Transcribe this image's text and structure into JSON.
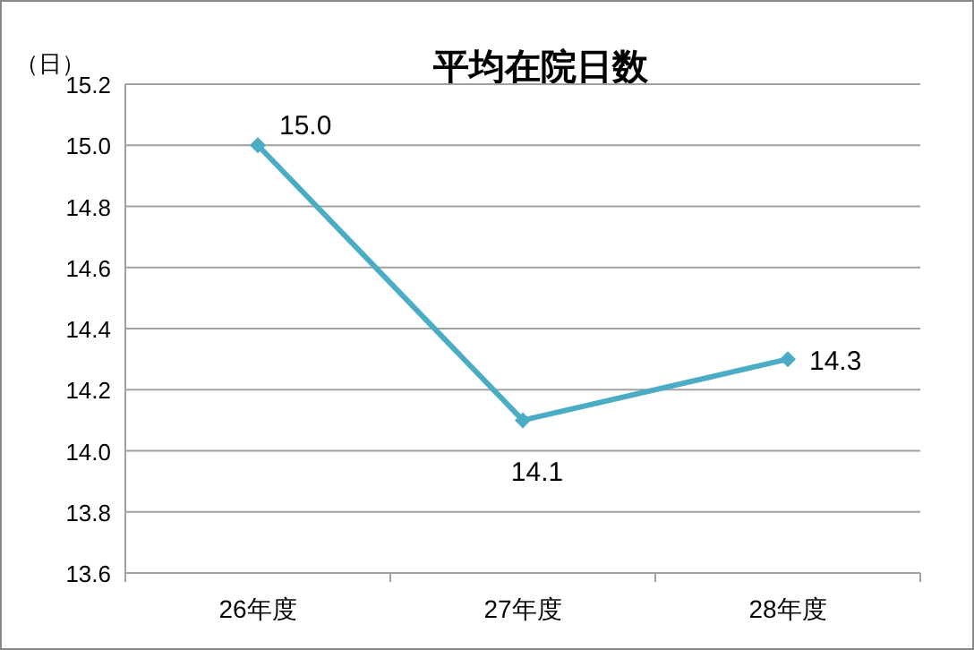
{
  "chart_data": {
    "type": "line",
    "title": "平均在院日数",
    "ylabel": "（日）",
    "categories": [
      "26年度",
      "27年度",
      "28年度"
    ],
    "series": [
      {
        "color": "#4bacc6",
        "values": [
          15.0,
          14.1,
          14.3
        ],
        "value_labels": [
          "15.0",
          "14.1",
          "14.3"
        ]
      }
    ],
    "ylim": [
      13.6,
      15.2
    ],
    "yticks": [
      {
        "value": 13.6,
        "label": "13.6"
      },
      {
        "value": 13.8,
        "label": "13.8"
      },
      {
        "value": 14.0,
        "label": "14.0"
      },
      {
        "value": 14.2,
        "label": "14.2"
      },
      {
        "value": 14.4,
        "label": "14.4"
      },
      {
        "value": 14.6,
        "label": "14.6"
      },
      {
        "value": 14.8,
        "label": "14.8"
      },
      {
        "value": 15.0,
        "label": "15.0"
      },
      {
        "value": 15.2,
        "label": "15.2"
      }
    ],
    "grid": "y",
    "marker": "diamond",
    "line_style": "solid"
  }
}
